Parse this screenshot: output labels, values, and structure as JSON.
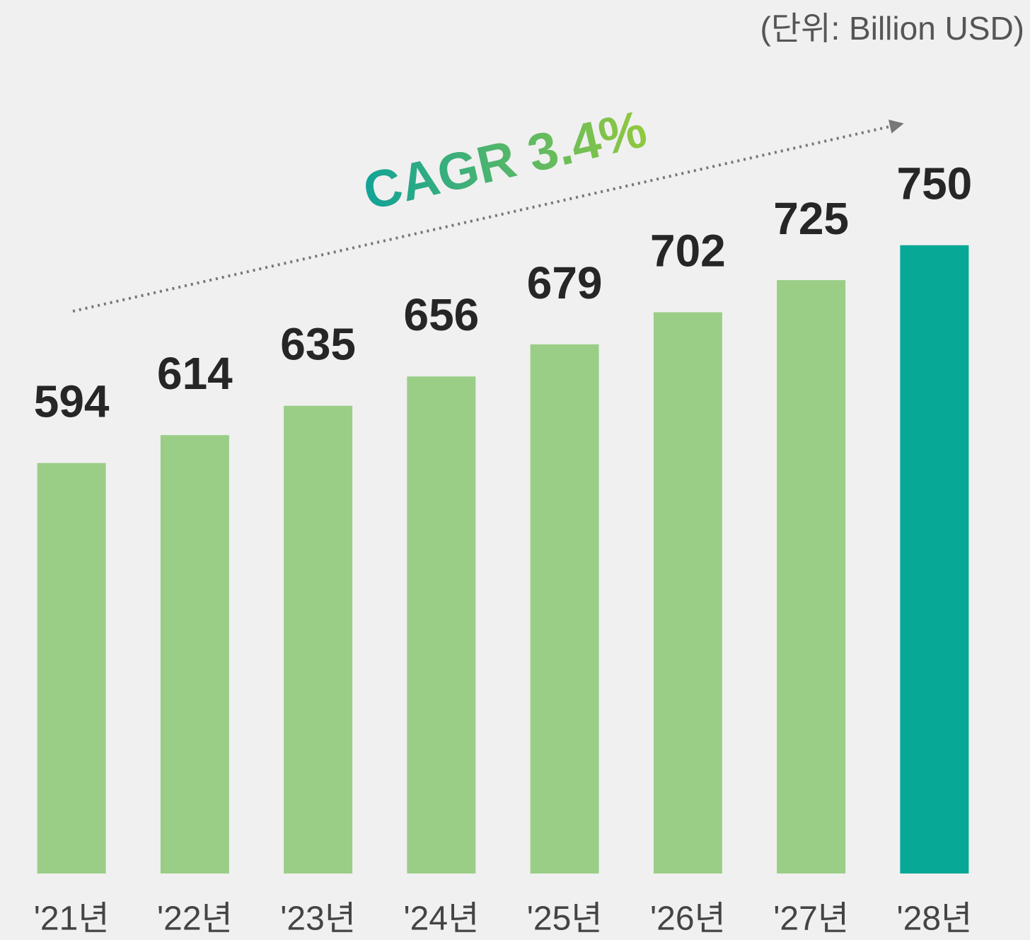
{
  "chart_data": {
    "type": "bar",
    "subtitle": "(단위: Billion USD)",
    "annotation": "CAGR 3.4%",
    "categories": [
      "'21년",
      "'22년",
      "'23년",
      "'24년",
      "'25년",
      "'26년",
      "'27년",
      "'28년"
    ],
    "values": [
      594,
      614,
      635,
      656,
      679,
      702,
      725,
      750
    ],
    "colors": [
      "#9ace87",
      "#9ace87",
      "#9ace87",
      "#9ace87",
      "#9ace87",
      "#9ace87",
      "#9ace87",
      "#07a896"
    ],
    "ylim": [
      300,
      800
    ],
    "grid": false
  }
}
